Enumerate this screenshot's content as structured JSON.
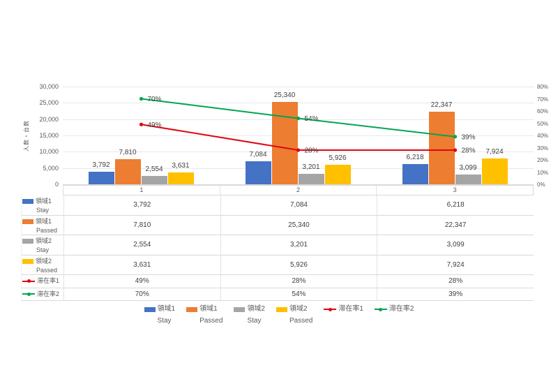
{
  "chart_data": {
    "type": "combo-bar-line",
    "categories": [
      "1",
      "2",
      "3"
    ],
    "bar_series": [
      {
        "name": "領域1",
        "sub": "Stay",
        "color": "#4472C4",
        "values": [
          3792,
          7084,
          6218
        ],
        "labels": [
          "3,792",
          "7,084",
          "6,218"
        ]
      },
      {
        "name": "領域1",
        "sub": "Passed",
        "color": "#ED7D31",
        "values": [
          7810,
          25340,
          22347
        ],
        "labels": [
          "7,810",
          "25,340",
          "22,347"
        ]
      },
      {
        "name": "領域2",
        "sub": "Stay",
        "color": "#A5A5A5",
        "values": [
          2554,
          3201,
          3099
        ],
        "labels": [
          "2,554",
          "3,201",
          "3,099"
        ]
      },
      {
        "name": "領域2",
        "sub": "Passed",
        "color": "#FFC000",
        "values": [
          3631,
          5926,
          7924
        ],
        "labels": [
          "3,631",
          "5,926",
          "7,924"
        ]
      }
    ],
    "line_series": [
      {
        "name": "滞在率1",
        "color": "#DF0613",
        "values": [
          49,
          28,
          28
        ],
        "labels": [
          "49%",
          "28%",
          "28%"
        ]
      },
      {
        "name": "滞在率2",
        "color": "#00A550",
        "values": [
          70,
          54,
          39
        ],
        "labels": [
          "70%",
          "54%",
          "39%"
        ]
      }
    ],
    "left_axis": {
      "title": "人数・台数",
      "min": 0,
      "max": 30000,
      "ticks": [
        "30,000",
        "25,000",
        "20,000",
        "15,000",
        "10,000",
        "5,000",
        "0"
      ]
    },
    "right_axis": {
      "min": 0,
      "max": 80,
      "ticks": [
        "80%",
        "70%",
        "60%",
        "50%",
        "40%",
        "30%",
        "20%",
        "10%",
        "0%"
      ]
    },
    "grid": true,
    "legend_position": "bottom",
    "data_table": true
  },
  "colors": {
    "gridline": "#e8e8e8",
    "table_border": "#d9d9d9",
    "tick_text": "#595959",
    "label_text": "#404040"
  }
}
